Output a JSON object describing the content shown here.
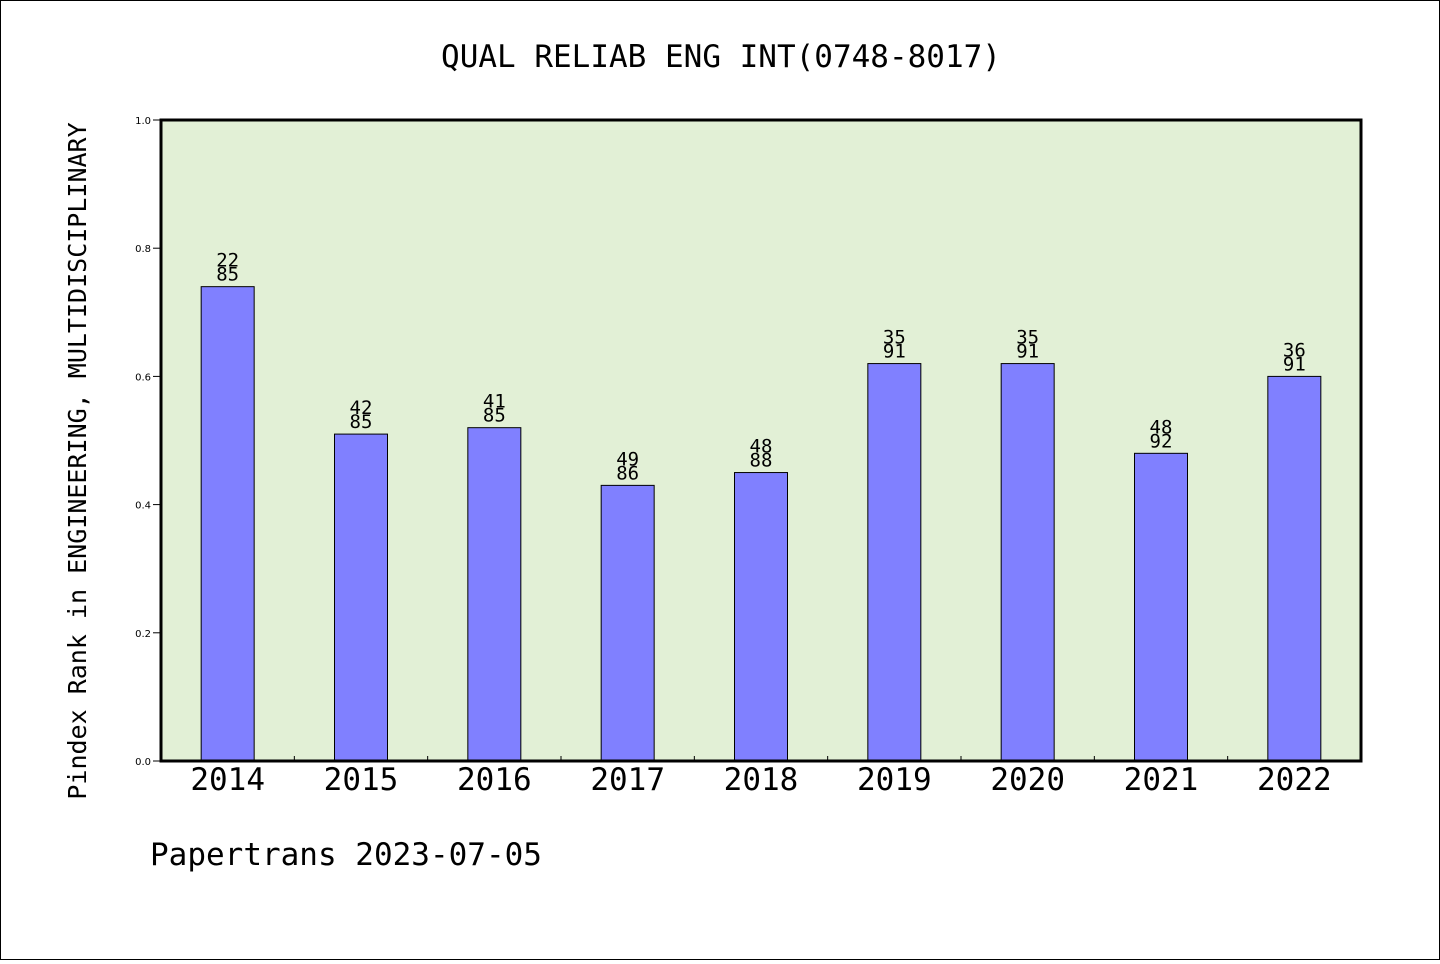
{
  "chart_data": {
    "type": "bar",
    "title": "QUAL RELIAB ENG INT(0748-8017)",
    "xlabel": "",
    "ylabel": "Pindex Rank in ENGINEERING, MULTIDISCIPLINARY",
    "categories": [
      "2014",
      "2015",
      "2016",
      "2017",
      "2018",
      "2019",
      "2020",
      "2021",
      "2022"
    ],
    "values": [
      0.74,
      0.51,
      0.52,
      0.43,
      0.45,
      0.62,
      0.62,
      0.48,
      0.6
    ],
    "rank_labels": [
      "22",
      "42",
      "41",
      "49",
      "48",
      "35",
      "35",
      "48",
      "36"
    ],
    "total_labels": [
      "85",
      "85",
      "85",
      "86",
      "88",
      "91",
      "91",
      "92",
      "91"
    ],
    "ylim": [
      0,
      1
    ],
    "yticks": [
      "0.0",
      "0.2",
      "0.4",
      "0.6",
      "0.8",
      "1.0"
    ],
    "grid": false,
    "bar_color": "#8080ff",
    "plot_background": "#e2f0d6"
  },
  "footer": "Papertrans 2023-07-05"
}
